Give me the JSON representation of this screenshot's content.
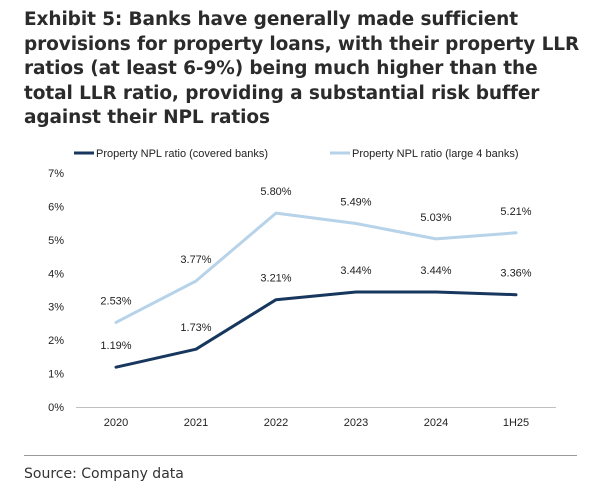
{
  "title": "Exhibit 5: Banks have generally made sufficient provisions for property loans, with their property LLR ratios (at least 6-9%) being much higher than the total LLR ratio, providing a substantial risk buffer against their NPL ratios",
  "source": "Source: Company data",
  "colors": {
    "series_dark": "#17375e",
    "series_light": "#b7d3ea",
    "text": "#222222",
    "rule": "#9a9a9a"
  },
  "chart_data": {
    "type": "line",
    "categories": [
      "2020",
      "2021",
      "2022",
      "2023",
      "2024",
      "1H25"
    ],
    "ylim": [
      0,
      7
    ],
    "yticks": [
      "0%",
      "1%",
      "2%",
      "3%",
      "4%",
      "5%",
      "6%",
      "7%"
    ],
    "legend_position": "top",
    "grid": false,
    "series": [
      {
        "name": "Property NPL ratio (covered banks)",
        "values": [
          1.19,
          1.73,
          3.21,
          3.44,
          3.44,
          3.36
        ],
        "labels": [
          "1.19%",
          "1.73%",
          "3.21%",
          "3.44%",
          "3.44%",
          "3.36%"
        ]
      },
      {
        "name": "Property NPL ratio (large 4 banks)",
        "values": [
          2.53,
          3.77,
          5.8,
          5.49,
          5.03,
          5.21
        ],
        "labels": [
          "2.53%",
          "3.77%",
          "5.80%",
          "5.49%",
          "5.03%",
          "5.21%"
        ]
      }
    ]
  }
}
